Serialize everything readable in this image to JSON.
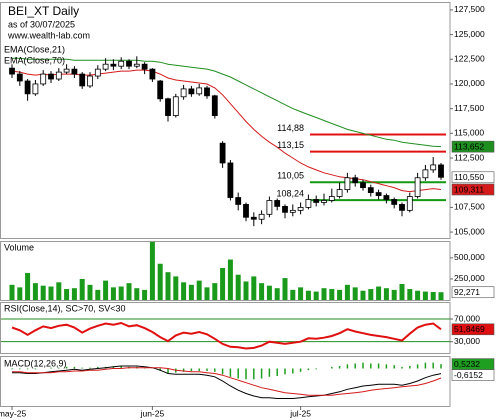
{
  "chart_data": [
    {
      "type": "candlestick",
      "title": "BEI_XT Daily",
      "subtitle": "as of 30/07/2025",
      "source": "www.wealth-lab.com",
      "open": [
        121.6,
        121.0,
        120.3,
        119.0,
        120.0,
        121.0,
        120.5,
        121.2,
        121.5,
        121.0,
        119.8,
        120.8,
        121.5,
        122.0,
        121.8,
        122.3,
        121.8,
        122.0,
        121.5,
        120.3,
        118.5,
        116.8,
        118.7,
        119.5,
        119.0,
        119.6,
        118.8,
        114.0,
        112.0,
        108.5,
        107.8,
        106.5,
        106.3,
        106.8,
        108.2,
        107.6,
        107.0,
        107.2,
        107.5,
        108.3,
        108.0,
        108.2,
        108.6,
        109.3,
        110.5,
        110.0,
        109.5,
        109.0,
        108.7,
        108.3,
        107.8,
        107.2,
        108.6,
        110.5,
        111.3,
        111.8
      ],
      "high": [
        122.0,
        121.3,
        120.5,
        120.4,
        121.4,
        121.3,
        121.6,
        122.0,
        121.8,
        121.2,
        121.2,
        121.9,
        122.6,
        122.5,
        122.7,
        122.5,
        122.8,
        122.2,
        121.6,
        120.4,
        118.6,
        119.0,
        119.9,
        119.8,
        120.0,
        119.8,
        118.9,
        114.2,
        112.3,
        109.0,
        108.0,
        107.0,
        107.2,
        108.6,
        108.4,
        107.8,
        107.8,
        108.0,
        108.8,
        108.7,
        108.9,
        109.4,
        110.0,
        111.0,
        110.8,
        110.3,
        109.8,
        109.3,
        108.9,
        108.5,
        108.0,
        109.0,
        111.0,
        111.8,
        112.6,
        112.0
      ],
      "low": [
        120.6,
        119.8,
        118.3,
        118.8,
        119.8,
        120.1,
        120.3,
        121.0,
        120.6,
        119.5,
        119.6,
        120.5,
        121.3,
        121.4,
        121.5,
        121.5,
        121.6,
        121.0,
        120.2,
        118.2,
        116.2,
        116.6,
        118.4,
        118.7,
        118.8,
        118.5,
        116.5,
        111.5,
        108.2,
        107.2,
        106.1,
        105.6,
        105.8,
        106.5,
        107.2,
        106.4,
        106.6,
        106.8,
        107.3,
        107.6,
        107.7,
        108.0,
        108.4,
        109.0,
        109.6,
        109.2,
        108.6,
        108.3,
        107.9,
        107.4,
        106.6,
        107.0,
        108.4,
        110.2,
        111.0,
        110.3
      ],
      "close": [
        121.0,
        120.3,
        119.0,
        120.0,
        121.0,
        120.5,
        121.2,
        121.5,
        121.0,
        119.8,
        120.8,
        121.5,
        122.0,
        121.8,
        122.3,
        121.8,
        122.0,
        121.5,
        120.5,
        118.5,
        116.8,
        118.7,
        119.5,
        119.0,
        119.6,
        118.8,
        116.8,
        112.0,
        108.5,
        107.8,
        106.5,
        106.3,
        106.8,
        108.2,
        107.6,
        107.0,
        107.2,
        107.5,
        108.3,
        108.0,
        108.2,
        108.6,
        109.3,
        110.5,
        110.0,
        109.5,
        109.0,
        108.7,
        108.3,
        107.8,
        107.2,
        108.6,
        110.5,
        111.3,
        111.8,
        110.55
      ],
      "last_label": "110,550",
      "series": [
        {
          "name": "EMA(Close,21)",
          "color": "#d41a1a",
          "last_label": "109,311",
          "values": [
            121.3,
            121.2,
            121.0,
            120.9,
            121.0,
            120.9,
            121.0,
            121.0,
            121.0,
            120.9,
            120.9,
            121.0,
            121.1,
            121.2,
            121.3,
            121.3,
            121.4,
            121.4,
            121.3,
            121.0,
            120.6,
            120.4,
            120.3,
            120.2,
            120.1,
            120.0,
            119.6,
            118.9,
            118.0,
            117.1,
            116.2,
            115.4,
            114.7,
            114.1,
            113.6,
            113.0,
            112.5,
            112.0,
            111.6,
            111.3,
            111.0,
            110.8,
            110.6,
            110.5,
            110.4,
            110.3,
            110.1,
            109.9,
            109.7,
            109.5,
            109.2,
            109.1,
            109.2,
            109.3,
            109.4,
            109.311
          ]
        },
        {
          "name": "EMA(Close,70)",
          "color": "#1f8f1f",
          "last_label": "113,652",
          "values": [
            122.6,
            122.6,
            122.5,
            122.5,
            122.5,
            122.5,
            122.5,
            122.5,
            122.4,
            122.4,
            122.4,
            122.4,
            122.4,
            122.4,
            122.4,
            122.4,
            122.4,
            122.3,
            122.3,
            122.2,
            122.0,
            121.9,
            121.8,
            121.7,
            121.6,
            121.5,
            121.3,
            121.0,
            120.7,
            120.3,
            119.9,
            119.5,
            119.1,
            118.7,
            118.3,
            117.9,
            117.5,
            117.2,
            116.9,
            116.6,
            116.3,
            116.0,
            115.7,
            115.4,
            115.2,
            115.0,
            114.8,
            114.6,
            114.4,
            114.3,
            114.1,
            114.0,
            113.9,
            113.8,
            113.7,
            113.652
          ]
        }
      ],
      "levels": [
        {
          "value": 114.88,
          "label": "114,88",
          "color": "#e01010"
        },
        {
          "value": 113.15,
          "label": "113,15",
          "color": "#e01010"
        },
        {
          "value": 110.05,
          "label": "110,05",
          "color": "#119911"
        },
        {
          "value": 108.24,
          "label": "108,24",
          "color": "#119911"
        }
      ],
      "ylim": [
        104.4,
        128.3
      ],
      "yticks": [
        {
          "value": 127.5,
          "label": "127,500"
        },
        {
          "value": 125,
          "label": "125,000"
        },
        {
          "value": 122.5,
          "label": "122,500"
        },
        {
          "value": 120,
          "label": "120,000"
        },
        {
          "value": 117.5,
          "label": "117,500"
        },
        {
          "value": 115,
          "label": "115,000"
        },
        {
          "value": 112.5,
          "label": "112,500"
        },
        {
          "value": 107.5,
          "label": "107,500"
        },
        {
          "value": 105,
          "label": "105,000"
        }
      ]
    },
    {
      "type": "bar",
      "title": "Volume",
      "color": "#1a9a1a",
      "last_label": "92,271",
      "values": [
        180000,
        150000,
        320000,
        200000,
        170000,
        160000,
        210000,
        130000,
        140000,
        250000,
        180000,
        120000,
        230000,
        150000,
        160000,
        200000,
        140000,
        120000,
        690000,
        430000,
        330000,
        280000,
        210000,
        180000,
        230000,
        150000,
        200000,
        380000,
        480000,
        300000,
        220000,
        280000,
        200000,
        170000,
        140000,
        260000,
        120000,
        150000,
        110000,
        100000,
        140000,
        130000,
        120000,
        180000,
        150000,
        110000,
        130000,
        160000,
        140000,
        120000,
        190000,
        130000,
        110000,
        100000,
        95000,
        92271
      ],
      "ylim": [
        0,
        700000
      ],
      "yticks": [
        {
          "value": 500000,
          "label": "500,000"
        },
        {
          "value": 250000,
          "label": "250,000"
        }
      ]
    },
    {
      "type": "line",
      "title": "RSI(Close,14), SC>70, SV<30",
      "color": "#e01010",
      "tick_color": "#1f8f1f",
      "last_label": "51,8469",
      "values": [
        55,
        50,
        42,
        50,
        57,
        54,
        58,
        60,
        55,
        46,
        53,
        58,
        62,
        60,
        63,
        57,
        59,
        54,
        47,
        38,
        31,
        41,
        46,
        44,
        47,
        43,
        35,
        26,
        21,
        20,
        18,
        19,
        23,
        30,
        28,
        26,
        28,
        30,
        36,
        35,
        37,
        40,
        45,
        52,
        48,
        45,
        42,
        40,
        38,
        35,
        32,
        44,
        55,
        60,
        62,
        51.8469
      ],
      "ylim": [
        10,
        100
      ],
      "yticks": [
        {
          "value": 70,
          "label": "70,000"
        },
        {
          "value": 30,
          "label": "30,000"
        }
      ]
    },
    {
      "type": "macd",
      "title": "MACD(12,26,9)",
      "categories": [
        "may-25",
        null,
        null,
        null,
        null,
        null,
        null,
        null,
        null,
        null,
        null,
        null,
        null,
        null,
        null,
        null,
        null,
        null,
        "jun-25",
        null,
        null,
        null,
        null,
        null,
        null,
        null,
        null,
        null,
        null,
        null,
        null,
        null,
        null,
        null,
        null,
        null,
        null,
        "jul-25",
        null,
        null,
        null,
        null,
        null,
        null,
        null,
        null,
        null,
        null,
        null,
        null,
        null,
        null,
        null,
        null,
        null,
        null
      ],
      "series": [
        {
          "color": "#000000",
          "last_label": "-0,6152",
          "values": [
            -0.5,
            -0.5,
            -0.6,
            -0.6,
            -0.5,
            -0.4,
            -0.3,
            -0.2,
            -0.1,
            -0.2,
            -0.1,
            0.0,
            0.1,
            0.2,
            0.3,
            0.3,
            0.3,
            0.2,
            0.1,
            -0.2,
            -0.6,
            -0.7,
            -0.7,
            -0.7,
            -0.7,
            -0.8,
            -1.0,
            -1.5,
            -2.1,
            -2.6,
            -3.0,
            -3.3,
            -3.5,
            -3.5,
            -3.6,
            -3.6,
            -3.6,
            -3.5,
            -3.4,
            -3.3,
            -3.2,
            -3.0,
            -2.8,
            -2.5,
            -2.3,
            -2.1,
            -2.0,
            -1.9,
            -1.9,
            -1.9,
            -2.0,
            -1.8,
            -1.5,
            -1.1,
            -0.8,
            -0.6152
          ]
        },
        {
          "color": "#d41a1a",
          "values": [
            -0.4,
            -0.4,
            -0.5,
            -0.5,
            -0.5,
            -0.5,
            -0.4,
            -0.4,
            -0.3,
            -0.3,
            -0.2,
            -0.2,
            -0.1,
            0.0,
            0.0,
            0.1,
            0.1,
            0.1,
            0.1,
            0.1,
            0.0,
            -0.2,
            -0.3,
            -0.4,
            -0.4,
            -0.5,
            -0.6,
            -0.8,
            -1.1,
            -1.4,
            -1.7,
            -2.0,
            -2.3,
            -2.5,
            -2.7,
            -2.9,
            -3.0,
            -3.1,
            -3.2,
            -3.2,
            -3.2,
            -3.2,
            -3.1,
            -3.0,
            -2.9,
            -2.8,
            -2.6,
            -2.5,
            -2.4,
            -2.3,
            -2.2,
            -2.1,
            -2.0,
            -1.8,
            -1.5,
            -1.1384
          ]
        }
      ],
      "histogram": {
        "color": "#1f9f1f",
        "last_label": "0,5232",
        "values": [
          -0.1,
          -0.1,
          -0.1,
          -0.1,
          0.0,
          0.1,
          0.1,
          0.2,
          0.2,
          0.1,
          0.1,
          0.2,
          0.2,
          0.2,
          0.3,
          0.2,
          0.2,
          0.1,
          0.0,
          -0.3,
          -0.6,
          -0.5,
          -0.4,
          -0.3,
          -0.3,
          -0.3,
          -0.4,
          -0.7,
          -1.0,
          -1.2,
          -1.3,
          -1.3,
          -1.2,
          -1.0,
          -0.9,
          -0.7,
          -0.6,
          -0.4,
          -0.2,
          -0.1,
          0.0,
          0.2,
          0.3,
          0.5,
          0.6,
          0.7,
          0.6,
          0.6,
          0.5,
          0.4,
          0.2,
          0.3,
          0.5,
          0.7,
          0.7,
          0.5232
        ]
      },
      "ylim": [
        -4.5,
        1.5
      ]
    }
  ]
}
